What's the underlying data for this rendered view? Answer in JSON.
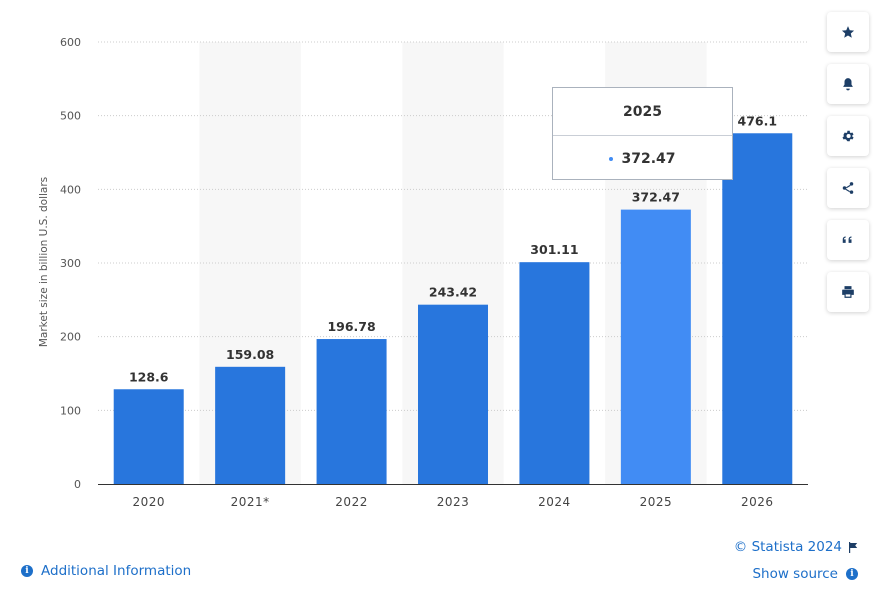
{
  "chart_data": {
    "type": "bar",
    "categories": [
      "2020",
      "2021*",
      "2022",
      "2023",
      "2024",
      "2025",
      "2026"
    ],
    "values": [
      128.6,
      159.08,
      196.78,
      243.42,
      301.11,
      372.47,
      476.1
    ],
    "value_labels": [
      "128.6",
      "159.08",
      "196.78",
      "243.42",
      "301.11",
      "372.47",
      "476.1"
    ],
    "ylabel": "Market size in billion U.S. dollars",
    "xlabel": "",
    "ylim": [
      0,
      600
    ],
    "yticks": [
      "0",
      "100",
      "200",
      "300",
      "400",
      "500",
      "600"
    ],
    "ytick_values": [
      0,
      100,
      200,
      300,
      400,
      500,
      600
    ],
    "grid": true,
    "highlighted_index": 5,
    "colors": {
      "bar": "#2876dd",
      "bar_highlight": "#418cf4",
      "band": "#f7f7f7",
      "grid": "#cccccc"
    }
  },
  "tooltip": {
    "title": "2025",
    "value": "372.47"
  },
  "sidebar": {
    "items": [
      {
        "icon": "star-icon"
      },
      {
        "icon": "bell-icon"
      },
      {
        "icon": "gear-icon"
      },
      {
        "icon": "share-icon"
      },
      {
        "icon": "quote-icon"
      },
      {
        "icon": "print-icon"
      }
    ]
  },
  "footer": {
    "additional_info": "Additional Information",
    "copyright": "© Statista 2024",
    "show_source": "Show source"
  }
}
